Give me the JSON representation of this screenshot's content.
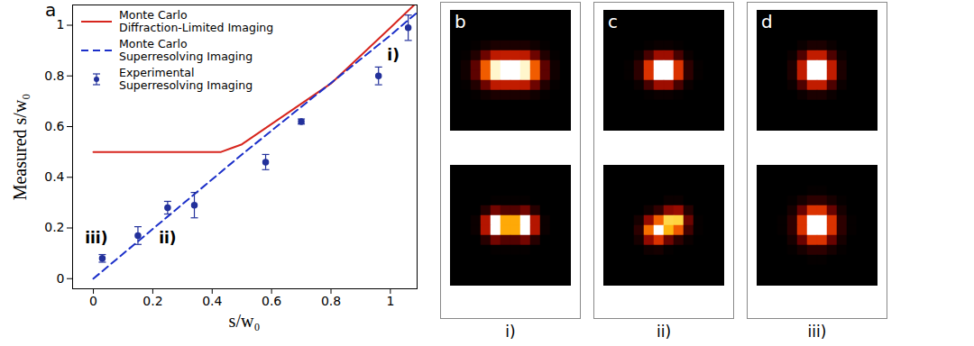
{
  "chart_data": [
    {
      "type": "line",
      "panel": "a",
      "xlabel": "s/w₀",
      "ylabel": "Measured s/w₀",
      "xlim": [
        -0.07,
        1.09
      ],
      "ylim": [
        -0.04,
        1.08
      ],
      "xticks": [
        0,
        0.2,
        0.4,
        0.6,
        0.8,
        1
      ],
      "yticks": [
        0,
        0.2,
        0.4,
        0.6,
        0.8,
        1
      ],
      "grid": false,
      "legend": "top-left",
      "series": [
        {
          "name": "Monte Carlo\nDiffraction-Limited Imaging",
          "type": "line",
          "color": "#d7261e",
          "line_style": "solid",
          "x": [
            0,
            0.43,
            0.5,
            0.8,
            1,
            1.08
          ],
          "values": [
            0.5,
            0.5,
            0.53,
            0.77,
            0.99,
            1.08
          ]
        },
        {
          "name": "Monte Carlo\nSuperresolving Imaging",
          "type": "line",
          "color": "#1b2fc9",
          "line_style": "dashed",
          "x": [
            0,
            0.5,
            1,
            1.09
          ],
          "values": [
            0,
            0.49,
            0.96,
            1.05
          ]
        },
        {
          "name": "Experimental\nSuperresolving Imaging",
          "type": "scatter",
          "color": "#23319b",
          "marker": "circle",
          "x": [
            0.03,
            0.15,
            0.25,
            0.34,
            0.58,
            0.7,
            0.96,
            1.06
          ],
          "values": [
            0.08,
            0.17,
            0.28,
            0.29,
            0.46,
            0.62,
            0.8,
            0.99
          ],
          "errors": [
            0.015,
            0.035,
            0.025,
            0.05,
            0.03,
            0.01,
            0.035,
            0.05
          ]
        }
      ],
      "annotations": [
        {
          "text": "i)",
          "x": 1.01,
          "y": 0.88
        },
        {
          "text": "ii)",
          "x": 0.25,
          "y": 0.16
        },
        {
          "text": "iii)",
          "x": 0.01,
          "y": 0.16
        }
      ]
    },
    {
      "type": "heatmap",
      "panel": "b",
      "label": "i)",
      "images": [
        [
          [
            0,
            0,
            0,
            0,
            0,
            0,
            0,
            0,
            0,
            0,
            0,
            0
          ],
          [
            0,
            0,
            0,
            0,
            0,
            0,
            0,
            0,
            0,
            0,
            0,
            0
          ],
          [
            0,
            0,
            0,
            0,
            0,
            0,
            0,
            0,
            0,
            0,
            0,
            0
          ],
          [
            0,
            0,
            0.01,
            0.03,
            0.05,
            0.05,
            0.05,
            0.05,
            0.03,
            0.01,
            0,
            0
          ],
          [
            0,
            0.01,
            0.06,
            0.2,
            0.36,
            0.37,
            0.37,
            0.36,
            0.2,
            0.06,
            0.01,
            0
          ],
          [
            0,
            0.03,
            0.17,
            0.54,
            0.96,
            1,
            1,
            0.96,
            0.54,
            0.17,
            0.03,
            0
          ],
          [
            0,
            0.03,
            0.17,
            0.54,
            0.96,
            1,
            1,
            0.96,
            0.54,
            0.17,
            0.03,
            0
          ],
          [
            0,
            0.01,
            0.06,
            0.2,
            0.36,
            0.37,
            0.37,
            0.36,
            0.2,
            0.06,
            0.01,
            0
          ],
          [
            0,
            0,
            0.01,
            0.03,
            0.05,
            0.05,
            0.05,
            0.05,
            0.03,
            0.01,
            0,
            0
          ],
          [
            0,
            0,
            0,
            0,
            0,
            0,
            0,
            0,
            0,
            0,
            0,
            0
          ],
          [
            0,
            0,
            0,
            0,
            0,
            0,
            0,
            0,
            0,
            0,
            0,
            0
          ],
          [
            0,
            0,
            0,
            0,
            0,
            0,
            0,
            0,
            0,
            0,
            0,
            0
          ]
        ],
        [
          [
            0,
            0,
            0,
            0,
            0,
            0,
            0,
            0,
            0,
            0,
            0,
            0
          ],
          [
            0,
            0,
            0,
            0,
            0,
            0,
            0,
            0,
            0,
            0,
            0,
            0
          ],
          [
            0,
            0,
            0,
            0,
            0,
            0,
            0,
            0,
            0,
            0,
            0,
            0
          ],
          [
            0,
            0,
            0,
            0,
            0.01,
            0.01,
            0.01,
            0.01,
            0,
            0,
            0,
            0
          ],
          [
            0,
            0,
            0,
            0.07,
            0.21,
            0.15,
            0.15,
            0.21,
            0.07,
            0,
            0,
            0
          ],
          [
            0,
            0,
            0.02,
            0.34,
            1,
            0.71,
            0.71,
            1,
            0.34,
            0.02,
            0,
            0
          ],
          [
            0,
            0,
            0.02,
            0.34,
            1,
            0.71,
            0.71,
            1,
            0.34,
            0.02,
            0,
            0
          ],
          [
            0,
            0,
            0,
            0.07,
            0.21,
            0.15,
            0.15,
            0.21,
            0.07,
            0,
            0,
            0
          ],
          [
            0,
            0,
            0,
            0,
            0.01,
            0.01,
            0.01,
            0.01,
            0,
            0,
            0,
            0
          ],
          [
            0,
            0,
            0,
            0,
            0,
            0,
            0,
            0,
            0,
            0,
            0,
            0
          ],
          [
            0,
            0,
            0,
            0,
            0,
            0,
            0,
            0,
            0,
            0,
            0,
            0
          ],
          [
            0,
            0,
            0,
            0,
            0,
            0,
            0,
            0,
            0,
            0,
            0,
            0
          ]
        ]
      ]
    },
    {
      "type": "heatmap",
      "panel": "c",
      "label": "ii)",
      "images": [
        [
          [
            0,
            0,
            0,
            0,
            0,
            0,
            0,
            0,
            0,
            0,
            0,
            0
          ],
          [
            0,
            0,
            0,
            0,
            0,
            0,
            0,
            0,
            0,
            0,
            0,
            0
          ],
          [
            0,
            0,
            0,
            0,
            0,
            0,
            0,
            0,
            0,
            0,
            0,
            0
          ],
          [
            0,
            0,
            0,
            0,
            0.01,
            0.02,
            0.02,
            0.01,
            0,
            0,
            0,
            0
          ],
          [
            0,
            0,
            0,
            0.02,
            0.13,
            0.29,
            0.29,
            0.13,
            0.02,
            0,
            0,
            0
          ],
          [
            0,
            0,
            0.01,
            0.08,
            0.44,
            1,
            1,
            0.44,
            0.08,
            0.01,
            0,
            0
          ],
          [
            0,
            0,
            0.01,
            0.08,
            0.44,
            1,
            1,
            0.44,
            0.08,
            0.01,
            0,
            0
          ],
          [
            0,
            0,
            0,
            0.02,
            0.13,
            0.29,
            0.29,
            0.13,
            0.02,
            0,
            0,
            0
          ],
          [
            0,
            0,
            0,
            0,
            0.01,
            0.02,
            0.02,
            0.01,
            0,
            0,
            0,
            0
          ],
          [
            0,
            0,
            0,
            0,
            0,
            0,
            0,
            0,
            0,
            0,
            0,
            0
          ],
          [
            0,
            0,
            0,
            0,
            0,
            0,
            0,
            0,
            0,
            0,
            0,
            0
          ],
          [
            0,
            0,
            0,
            0,
            0,
            0,
            0,
            0,
            0,
            0,
            0,
            0
          ]
        ],
        [
          [
            0,
            0,
            0,
            0,
            0,
            0,
            0,
            0,
            0,
            0,
            0,
            0
          ],
          [
            0,
            0,
            0,
            0,
            0,
            0,
            0,
            0,
            0,
            0,
            0,
            0
          ],
          [
            0,
            0,
            0,
            0,
            0,
            0,
            0,
            0,
            0,
            0,
            0,
            0
          ],
          [
            0,
            0,
            0,
            0,
            0,
            0,
            0.02,
            0.02,
            0,
            0,
            0,
            0
          ],
          [
            0,
            0,
            0,
            0,
            0.03,
            0.09,
            0.25,
            0.28,
            0.07,
            0,
            0,
            0
          ],
          [
            0,
            0,
            0,
            0.04,
            0.27,
            0.55,
            0.84,
            0.83,
            0.2,
            0.01,
            0,
            0
          ],
          [
            0,
            0,
            0,
            0.08,
            0.58,
            1,
            0.74,
            0.53,
            0.12,
            0.01,
            0,
            0
          ],
          [
            0,
            0,
            0,
            0.04,
            0.27,
            0.44,
            0.2,
            0.08,
            0.02,
            0,
            0,
            0
          ],
          [
            0,
            0,
            0,
            0,
            0.03,
            0.04,
            0.01,
            0,
            0,
            0,
            0,
            0
          ],
          [
            0,
            0,
            0,
            0,
            0,
            0,
            0,
            0,
            0,
            0,
            0,
            0
          ],
          [
            0,
            0,
            0,
            0,
            0,
            0,
            0,
            0,
            0,
            0,
            0,
            0
          ],
          [
            0,
            0,
            0,
            0,
            0,
            0,
            0,
            0,
            0,
            0,
            0,
            0
          ]
        ]
      ]
    },
    {
      "type": "heatmap",
      "panel": "d",
      "label": "iii)",
      "images": [
        [
          [
            0,
            0,
            0,
            0,
            0,
            0,
            0,
            0,
            0,
            0,
            0,
            0
          ],
          [
            0,
            0,
            0,
            0,
            0,
            0,
            0,
            0,
            0,
            0,
            0,
            0
          ],
          [
            0,
            0,
            0,
            0,
            0,
            0,
            0,
            0,
            0,
            0,
            0,
            0
          ],
          [
            0,
            0,
            0,
            0,
            0.02,
            0.05,
            0.05,
            0.02,
            0,
            0,
            0,
            0
          ],
          [
            0,
            0,
            0,
            0.02,
            0.14,
            0.37,
            0.37,
            0.14,
            0.02,
            0,
            0,
            0
          ],
          [
            0,
            0,
            0,
            0.05,
            0.37,
            1,
            1,
            0.37,
            0.05,
            0,
            0,
            0
          ],
          [
            0,
            0,
            0,
            0.05,
            0.37,
            1,
            1,
            0.37,
            0.05,
            0,
            0,
            0
          ],
          [
            0,
            0,
            0,
            0.02,
            0.14,
            0.37,
            0.37,
            0.14,
            0.02,
            0,
            0,
            0
          ],
          [
            0,
            0,
            0,
            0,
            0.02,
            0.05,
            0.05,
            0.02,
            0,
            0,
            0,
            0
          ],
          [
            0,
            0,
            0,
            0,
            0,
            0,
            0,
            0,
            0,
            0,
            0,
            0
          ],
          [
            0,
            0,
            0,
            0,
            0,
            0,
            0,
            0,
            0,
            0,
            0,
            0
          ],
          [
            0,
            0,
            0,
            0,
            0,
            0,
            0,
            0,
            0,
            0,
            0,
            0
          ]
        ],
        [
          [
            0,
            0,
            0,
            0,
            0,
            0,
            0,
            0,
            0,
            0,
            0,
            0
          ],
          [
            0,
            0,
            0,
            0,
            0,
            0,
            0,
            0,
            0,
            0,
            0,
            0
          ],
          [
            0,
            0,
            0,
            0,
            0,
            0.01,
            0.01,
            0,
            0,
            0,
            0,
            0
          ],
          [
            0,
            0,
            0,
            0.01,
            0.04,
            0.08,
            0.08,
            0.04,
            0.01,
            0,
            0,
            0
          ],
          [
            0,
            0,
            0,
            0.04,
            0.19,
            0.44,
            0.44,
            0.19,
            0.04,
            0,
            0,
            0
          ],
          [
            0,
            0,
            0.01,
            0.08,
            0.44,
            1,
            1,
            0.44,
            0.08,
            0.01,
            0,
            0
          ],
          [
            0,
            0,
            0.01,
            0.08,
            0.44,
            1,
            1,
            0.44,
            0.08,
            0.01,
            0,
            0
          ],
          [
            0,
            0,
            0,
            0.04,
            0.19,
            0.44,
            0.44,
            0.19,
            0.04,
            0,
            0,
            0
          ],
          [
            0,
            0,
            0,
            0.01,
            0.04,
            0.08,
            0.08,
            0.04,
            0.01,
            0,
            0,
            0
          ],
          [
            0,
            0,
            0,
            0,
            0,
            0.01,
            0.01,
            0,
            0,
            0,
            0,
            0
          ],
          [
            0,
            0,
            0,
            0,
            0,
            0,
            0,
            0,
            0,
            0,
            0,
            0
          ],
          [
            0,
            0,
            0,
            0,
            0,
            0,
            0,
            0,
            0,
            0,
            0,
            0
          ]
        ]
      ]
    }
  ]
}
